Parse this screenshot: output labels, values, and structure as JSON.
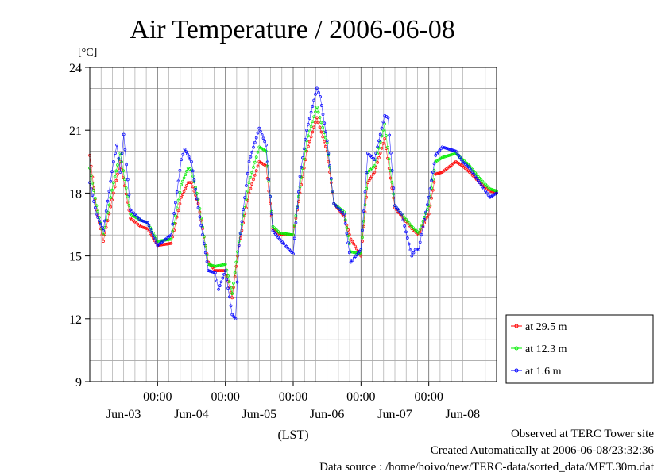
{
  "chart_data": {
    "type": "line",
    "title": "Air Temperature / 2006-06-08",
    "ylabel": "[°C]",
    "xlabel": "(LST)",
    "ylim": [
      9,
      24
    ],
    "yticks": [
      "9",
      "12",
      "15",
      "18",
      "21",
      "24"
    ],
    "xlim": [
      0,
      6
    ],
    "xticks_time": [
      "00:00",
      "00:00",
      "00:00",
      "00:00",
      "00:00"
    ],
    "xticks_day": [
      "Jun-03",
      "Jun-04",
      "Jun-05",
      "Jun-06",
      "Jun-07",
      "Jun-08"
    ],
    "grid": true,
    "legend_position": "right",
    "series": [
      {
        "name": "at 29.5 m",
        "color": "#ff0000",
        "x": [
          0.0,
          0.1,
          0.2,
          0.35,
          0.45,
          0.6,
          0.75,
          0.85,
          1.0,
          1.2,
          1.35,
          1.45,
          1.5,
          1.6,
          1.75,
          1.85,
          2.0,
          2.1,
          2.2,
          2.35,
          2.5,
          2.6,
          2.7,
          2.8,
          3.0,
          3.1,
          3.2,
          3.35,
          3.5,
          3.6,
          3.75,
          3.85,
          4.0,
          4.1,
          4.2,
          4.35,
          4.5,
          4.6,
          4.75,
          4.85,
          5.0,
          5.1,
          5.2,
          5.4,
          5.5,
          5.6,
          5.75,
          5.9,
          6.0
        ],
        "y": [
          19.8,
          17.2,
          15.7,
          18.0,
          19.5,
          16.8,
          16.4,
          16.3,
          15.5,
          15.6,
          17.8,
          18.5,
          18.5,
          17.5,
          14.7,
          14.3,
          14.3,
          13.0,
          15.5,
          18.0,
          19.5,
          19.3,
          16.3,
          16.0,
          16.0,
          18.0,
          20.0,
          21.6,
          20.0,
          17.5,
          16.9,
          15.8,
          15.0,
          18.5,
          19.0,
          20.6,
          17.3,
          16.9,
          16.3,
          16.0,
          17.0,
          18.9,
          19.0,
          19.5,
          19.3,
          19.0,
          18.5,
          18.1,
          18.0
        ]
      },
      {
        "name": "at 12.3 m",
        "color": "#00ee00",
        "x": [
          0.0,
          0.1,
          0.2,
          0.35,
          0.45,
          0.6,
          0.75,
          0.85,
          1.0,
          1.2,
          1.35,
          1.45,
          1.5,
          1.6,
          1.75,
          1.85,
          2.0,
          2.1,
          2.2,
          2.35,
          2.5,
          2.6,
          2.7,
          2.8,
          3.0,
          3.1,
          3.2,
          3.35,
          3.5,
          3.6,
          3.75,
          3.85,
          4.0,
          4.1,
          4.2,
          4.35,
          4.5,
          4.6,
          4.75,
          4.85,
          5.0,
          5.1,
          5.2,
          5.4,
          5.5,
          5.6,
          5.75,
          5.9,
          6.0
        ],
        "y": [
          19.2,
          17.4,
          16.0,
          18.5,
          19.9,
          17.0,
          16.7,
          16.6,
          15.7,
          15.8,
          18.4,
          19.2,
          19.1,
          17.7,
          14.6,
          14.5,
          14.6,
          13.2,
          15.7,
          18.5,
          20.2,
          20.0,
          16.4,
          16.1,
          16.0,
          18.3,
          20.5,
          22.1,
          20.4,
          17.5,
          17.1,
          15.2,
          15.1,
          19.0,
          19.3,
          21.3,
          17.4,
          17.0,
          16.4,
          16.1,
          17.4,
          19.5,
          19.7,
          19.9,
          19.6,
          19.3,
          18.7,
          18.2,
          18.1
        ]
      },
      {
        "name": "at 1.6 m",
        "color": "#0000ff",
        "x": [
          0.0,
          0.1,
          0.2,
          0.35,
          0.4,
          0.45,
          0.5,
          0.6,
          0.75,
          0.85,
          1.0,
          1.2,
          1.35,
          1.4,
          1.5,
          1.6,
          1.75,
          1.85,
          1.9,
          2.0,
          2.1,
          2.15,
          2.2,
          2.35,
          2.5,
          2.6,
          2.7,
          2.8,
          3.0,
          3.1,
          3.2,
          3.35,
          3.4,
          3.5,
          3.6,
          3.75,
          3.85,
          3.9,
          4.0,
          4.1,
          4.2,
          4.35,
          4.4,
          4.5,
          4.6,
          4.75,
          4.8,
          4.85,
          5.0,
          5.1,
          5.2,
          5.4,
          5.5,
          5.6,
          5.75,
          5.9,
          6.0
        ],
        "y": [
          18.5,
          17.0,
          16.2,
          19.5,
          20.3,
          19.0,
          20.8,
          17.2,
          16.7,
          16.6,
          15.5,
          16.0,
          19.6,
          20.1,
          19.5,
          17.3,
          14.3,
          14.2,
          13.4,
          14.3,
          12.2,
          12.0,
          15.5,
          19.5,
          21.1,
          20.3,
          16.2,
          15.8,
          15.1,
          18.8,
          21.0,
          23.0,
          22.6,
          20.5,
          17.5,
          17.0,
          14.7,
          14.9,
          15.3,
          19.9,
          19.6,
          21.7,
          21.6,
          17.4,
          17.0,
          15.0,
          15.3,
          15.3,
          17.8,
          19.8,
          20.2,
          20.0,
          19.5,
          19.2,
          18.5,
          17.8,
          18.0
        ]
      }
    ]
  },
  "legend": [
    {
      "label": "at 29.5 m",
      "color": "#ff0000"
    },
    {
      "label": "at 12.3 m",
      "color": "#00ee00"
    },
    {
      "label": "at 1.6 m",
      "color": "#0000ff"
    }
  ],
  "footer": {
    "line1": "Observed at TERC Tower site",
    "line2": "Created Automatically at 2006-06-08/23:32:36",
    "line3": "Data source : /home/hoivo/new/TERC-data/sorted_data/MET.30m.dat"
  }
}
